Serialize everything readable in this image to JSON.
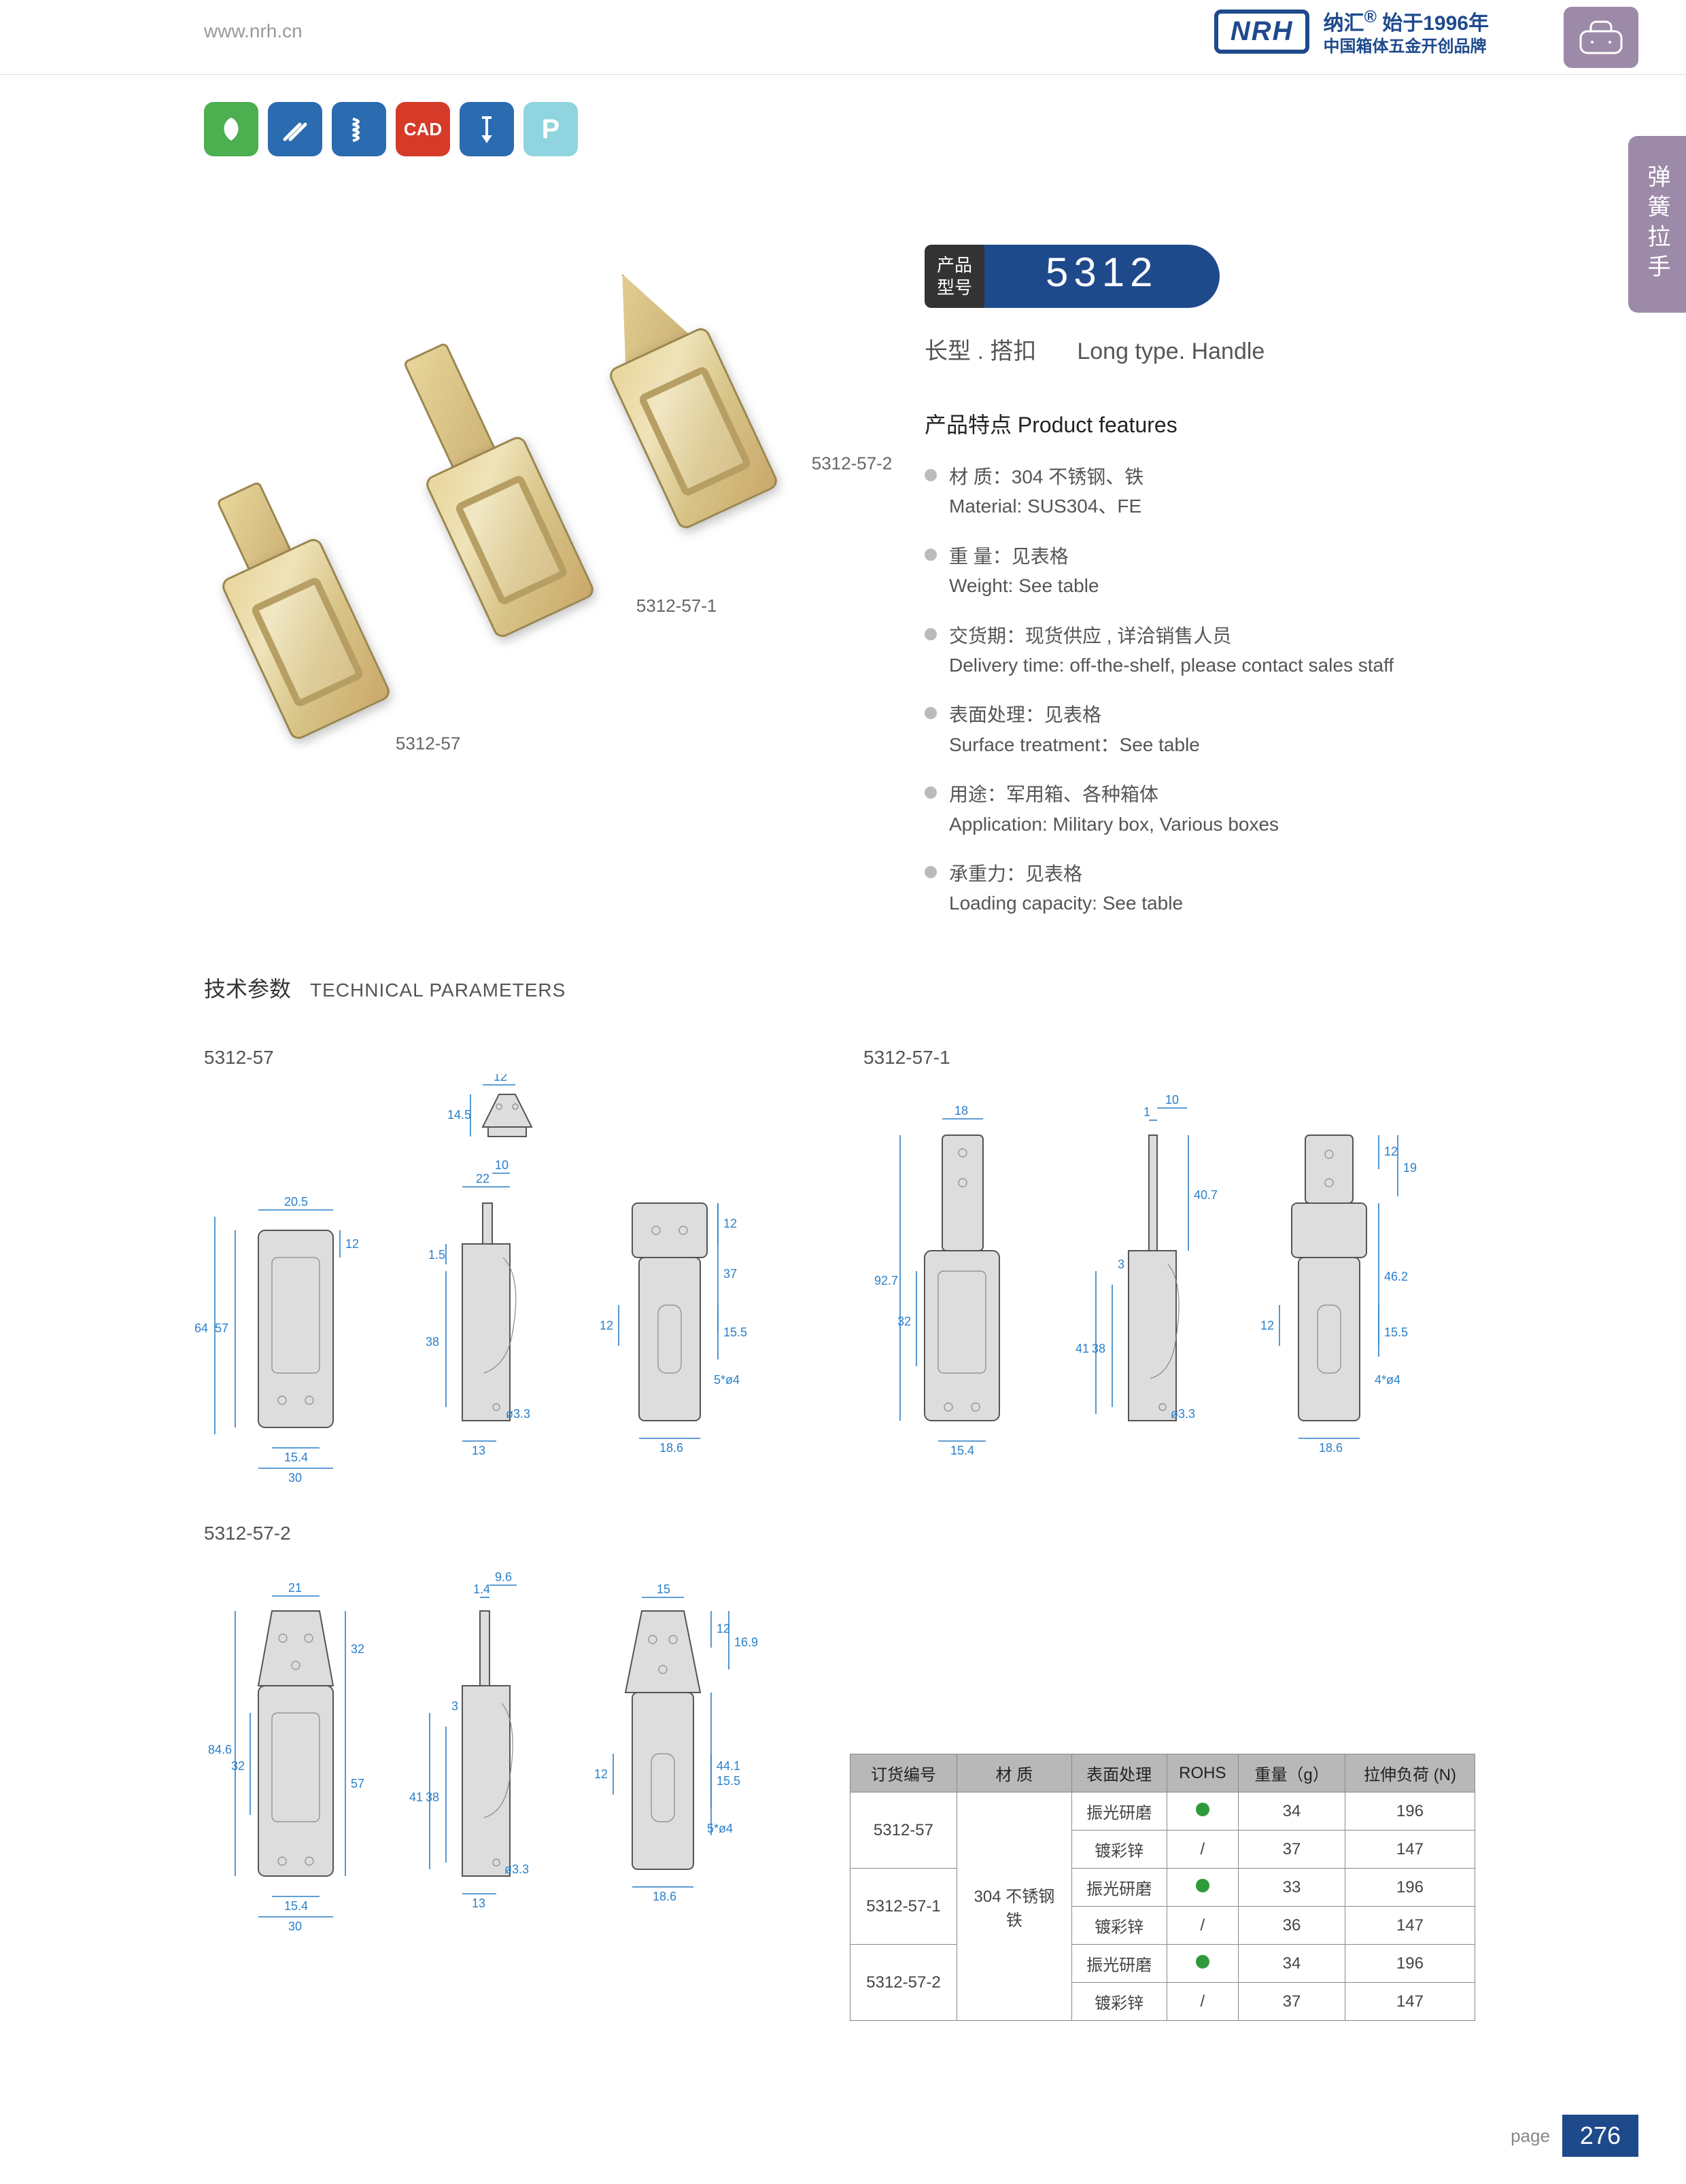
{
  "header": {
    "url": "www.nrh.cn",
    "logo": "NRH",
    "brand_cn": "纳汇",
    "since": "始于1996年",
    "slogan": "中国箱体五金开创品牌"
  },
  "side_tab": "弹簧拉手",
  "icons": {
    "leaf": "❧",
    "tools": "✕",
    "spring": "≈",
    "cad": "CAD",
    "screw": "T",
    "p": "P"
  },
  "product_labels": {
    "p1": "5312-57",
    "p2": "5312-57-1",
    "p3": "5312-57-2"
  },
  "model": {
    "label_cn1": "产品",
    "label_cn2": "型号",
    "number": "5312",
    "subtitle_cn": "长型 . 搭扣",
    "subtitle_en": "Long type. Handle"
  },
  "features": {
    "title": "产品特点  Product features",
    "items": [
      {
        "cn": "材  质：304 不锈钢、铁",
        "en": "Material: SUS304、FE"
      },
      {
        "cn": "重  量：见表格",
        "en": "Weight: See table"
      },
      {
        "cn": "交货期：现货供应 , 详洽销售人员",
        "en": "Delivery time: off-the-shelf, please contact sales staff"
      },
      {
        "cn": "表面处理：见表格",
        "en": "Surface treatment：See table"
      },
      {
        "cn": "用途：军用箱、各种箱体",
        "en": "Application: Military box, Various boxes"
      },
      {
        "cn": "承重力：见表格",
        "en": "Loading capacity: See table"
      }
    ]
  },
  "tech_title": {
    "cn": "技术参数",
    "en": "TECHNICAL PARAMETERS"
  },
  "drawings": {
    "d1": "5312-57",
    "d2": "5312-57-1",
    "d3": "5312-57-2",
    "dims": {
      "a": {
        "top_w": "12",
        "top_h": "14.5",
        "front_w": "20.5",
        "front_h": "57",
        "front_h2": "64",
        "inner_w": "15.4",
        "outer_w": "30",
        "side_w": "22",
        "side_t": "10",
        "side_h": "38",
        "side_t2": "1.5",
        "side_t3": "12",
        "hole": "ø3.3",
        "rear_t": "12",
        "rear_h": "37",
        "rear_h2": "15.5",
        "rear_w": "18.6",
        "slot": "5*ø4",
        "rear_t2": "12",
        "tab_h": "13"
      },
      "b": {
        "tab_w": "18",
        "total_h": "92.7",
        "body_h": "32",
        "inner_w": "15.4",
        "side_t": "1",
        "side_t2": "10",
        "side_h": "38",
        "side_h2": "41",
        "tab_h": "40.7",
        "hole": "ø3.3",
        "tab_t": "12",
        "rear_t": "12",
        "rear_t2": "19",
        "rear_h": "46.2",
        "rear_h2": "15.5",
        "rear_w": "18.6",
        "slot": "4*ø4",
        "gap": "3"
      },
      "c": {
        "tab_w": "21",
        "tab_w2": "9.6",
        "total_h": "84.6",
        "body_h": "57",
        "body_h2": "32",
        "inner_w": "15.4",
        "outer_w": "30",
        "side_t": "1.4",
        "side_h": "38",
        "side_h2": "41",
        "side_h3": "32",
        "hole": "ø3.3",
        "gap": "3",
        "rear_w2": "15",
        "rear_t": "12",
        "rear_h": "44.1",
        "rear_h2": "15.5",
        "rear_h3": "16.9",
        "rear_w": "18.6",
        "slot": "5*ø4",
        "tab_h": "13",
        "body_h3": "32"
      }
    }
  },
  "table": {
    "columns": [
      "订货编号",
      "材  质",
      "表面处理",
      "ROHS",
      "重量（g）",
      "拉伸负荷 (N)"
    ],
    "material": "304 不锈钢\n铁",
    "rows": [
      {
        "code": "5312-57",
        "surf": "振光研磨",
        "rohs": "dot",
        "w": "34",
        "load": "196"
      },
      {
        "code": "",
        "surf": "镀彩锌",
        "rohs": "/",
        "w": "37",
        "load": "147"
      },
      {
        "code": "5312-57-1",
        "surf": "振光研磨",
        "rohs": "dot",
        "w": "33",
        "load": "196"
      },
      {
        "code": "",
        "surf": "镀彩锌",
        "rohs": "/",
        "w": "36",
        "load": "147"
      },
      {
        "code": "5312-57-2",
        "surf": "振光研磨",
        "rohs": "dot",
        "w": "34",
        "load": "196"
      },
      {
        "code": "",
        "surf": "镀彩锌",
        "rohs": "/",
        "w": "37",
        "load": "147"
      }
    ]
  },
  "page": {
    "label": "page",
    "num": "276"
  }
}
